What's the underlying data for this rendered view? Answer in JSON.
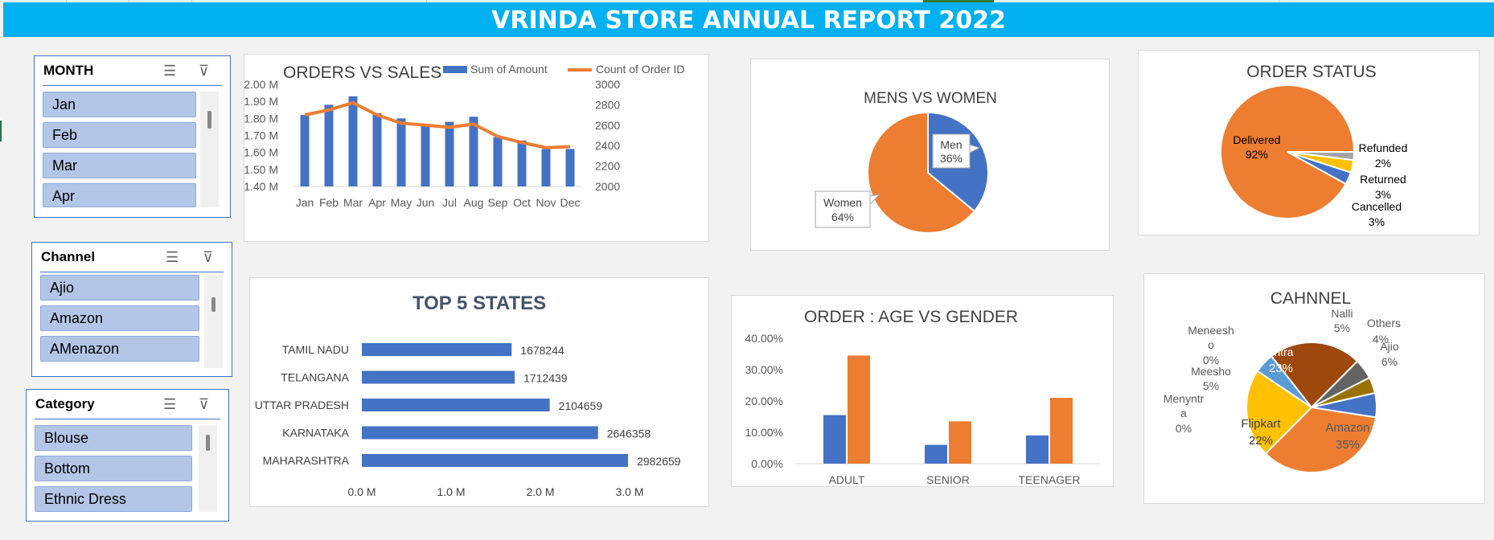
{
  "header": {
    "title": "VRINDA STORE ANNUAL  REPORT 2022"
  },
  "slicers": {
    "month": {
      "title": "MONTH",
      "items": [
        "Jan",
        "Feb",
        "Mar",
        "Apr"
      ]
    },
    "channel": {
      "title": "Channel",
      "items": [
        "Ajio",
        "Amazon",
        "AMenazon"
      ]
    },
    "category": {
      "title": "Category",
      "items": [
        "Blouse",
        "Bottom",
        "Ethnic Dress"
      ]
    }
  },
  "icons": {
    "multiselect": "multi-select-icon",
    "clear_filter": "clear-filter-icon"
  },
  "chart_data": [
    {
      "type": "bar+line",
      "title": "ORDERS VS SALES",
      "categories": [
        "Jan",
        "Feb",
        "Mar",
        "Apr",
        "May",
        "Jun",
        "Jul",
        "Aug",
        "Sep",
        "Oct",
        "Nov",
        "Dec"
      ],
      "series": [
        {
          "name": "Sum of Amount",
          "type": "bar",
          "axis": "left",
          "color": "#4472c4",
          "values": [
            1.82,
            1.88,
            1.93,
            1.83,
            1.8,
            1.76,
            1.78,
            1.81,
            1.69,
            1.67,
            1.62,
            1.62
          ]
        },
        {
          "name": "Count of Order ID",
          "type": "line",
          "axis": "right",
          "color": "#ed7d31",
          "values": [
            2700,
            2750,
            2820,
            2700,
            2620,
            2600,
            2580,
            2610,
            2490,
            2430,
            2380,
            2390
          ]
        }
      ],
      "y_left": {
        "min": 1.4,
        "max": 2.0,
        "ticks": [
          "1.40 M",
          "1.50 M",
          "1.60 M",
          "1.70 M",
          "1.80 M",
          "1.90 M",
          "2.00 M"
        ]
      },
      "y_right": {
        "min": 2000,
        "max": 3000,
        "ticks": [
          "2000",
          "2200",
          "2400",
          "2600",
          "2800",
          "3000"
        ]
      },
      "legend": "top-right"
    },
    {
      "type": "pie",
      "title": "MENS VS WOMEN",
      "slices": [
        {
          "label": "Men",
          "value": 36,
          "text": "36%",
          "color": "#4472c4"
        },
        {
          "label": "Women",
          "value": 64,
          "text": "64%",
          "color": "#ed7d31"
        }
      ]
    },
    {
      "type": "pie",
      "title": "ORDER STATUS",
      "slices": [
        {
          "label": "Delivered",
          "value": 92,
          "text": "92%",
          "color": "#ed7d31"
        },
        {
          "label": "Refunded",
          "value": 2,
          "text": "2%",
          "color": "#a5a5a5"
        },
        {
          "label": "Returned",
          "value": 3,
          "text": "3%",
          "color": "#ffc000"
        },
        {
          "label": "Cancelled",
          "value": 3,
          "text": "3%",
          "color": "#4472c4"
        }
      ]
    },
    {
      "type": "bar",
      "orientation": "horizontal",
      "title": "TOP 5 STATES",
      "categories": [
        "TAMIL NADU",
        "TELANGANA",
        "UTTAR PRADESH",
        "KARNATAKA",
        "MAHARASHTRA"
      ],
      "values": [
        1678244,
        1712439,
        2104659,
        2646358,
        2982659
      ],
      "labels": [
        "1678244",
        "1712439",
        "2104659",
        "2646358",
        "2982659"
      ],
      "x_ticks": [
        "0.0 M",
        "1.0 M",
        "2.0 M",
        "3.0 M"
      ],
      "xlim": [
        0,
        3000000
      ],
      "color": "#4472c4"
    },
    {
      "type": "bar",
      "title": "ORDER : AGE VS GENDER",
      "categories": [
        "ADULT",
        "SENIOR",
        "TEENAGER"
      ],
      "series": [
        {
          "color": "#4472c4",
          "values": [
            15.5,
            6.0,
            9.0
          ]
        },
        {
          "color": "#ed7d31",
          "values": [
            34.5,
            13.5,
            21.0
          ]
        }
      ],
      "y_ticks": [
        "0.00%",
        "10.00%",
        "20.00%",
        "30.00%",
        "40.00%"
      ],
      "ylim": [
        0,
        40
      ]
    },
    {
      "type": "pie",
      "title": "CAHNNEL",
      "slices": [
        {
          "label": "Myntra",
          "value": 23,
          "text": "23%",
          "color": "#9e480e"
        },
        {
          "label": "Nalli",
          "value": 5,
          "text": "5%",
          "color": "#636363"
        },
        {
          "label": "Others",
          "value": 4,
          "text": "4%",
          "color": "#997300"
        },
        {
          "label": "Ajio",
          "value": 6,
          "text": "6%",
          "color": "#4472c4"
        },
        {
          "label": "Amazon",
          "value": 35,
          "text": "35%",
          "color": "#ed7d31"
        },
        {
          "label": "Flipkart",
          "value": 22,
          "text": "22%",
          "color": "#ffc000"
        },
        {
          "label": "Menyntra",
          "value": 0,
          "text": "0%",
          "color": "#a5a5a5"
        },
        {
          "label": "Meesho",
          "value": 5,
          "text": "5%",
          "color": "#5b9bd5"
        },
        {
          "label": "Meneesho",
          "value": 0,
          "text": "0%",
          "color": "#264478"
        }
      ]
    }
  ]
}
